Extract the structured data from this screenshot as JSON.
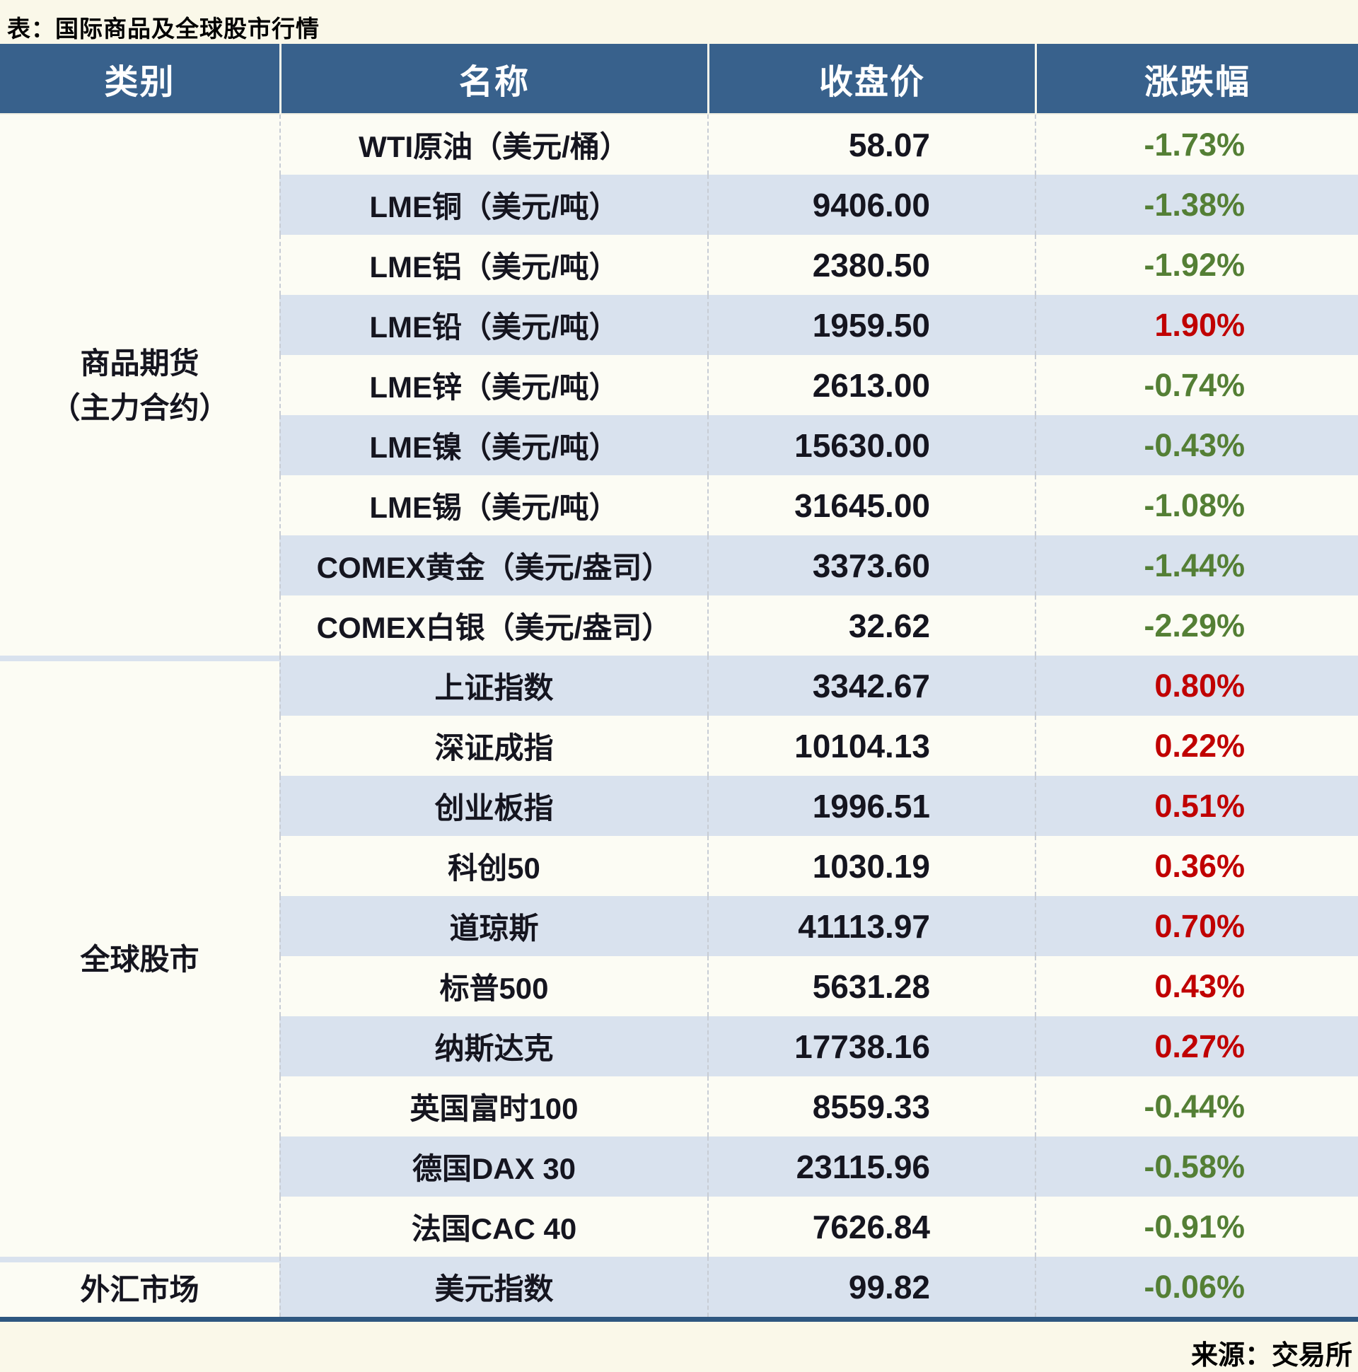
{
  "title": "表：国际商品及全球股市行情",
  "source": "来源：交易所",
  "colors": {
    "header_bg": "#38618C",
    "header_fg": "#FFFFFF",
    "row_light": "#FCFCF4",
    "row_blue": "#D9E2EE",
    "up_red": "#C00000",
    "down_green": "#547F35",
    "bottom_border": "#2E5780",
    "page_bg": "#FAF8E9"
  },
  "table": {
    "headers": [
      "类别",
      "名称",
      "收盘价",
      "涨跌幅"
    ],
    "groups": [
      {
        "category_lines": [
          "商品期货",
          "（主力合约）"
        ],
        "rows": [
          {
            "name": "WTI原油（美元/桶）",
            "close": "58.07",
            "change": "-1.73%",
            "trend": "down"
          },
          {
            "name": "LME铜（美元/吨）",
            "close": "9406.00",
            "change": "-1.38%",
            "trend": "down"
          },
          {
            "name": "LME铝（美元/吨）",
            "close": "2380.50",
            "change": "-1.92%",
            "trend": "down"
          },
          {
            "name": "LME铅（美元/吨）",
            "close": "1959.50",
            "change": "1.90%",
            "trend": "up"
          },
          {
            "name": "LME锌（美元/吨）",
            "close": "2613.00",
            "change": "-0.74%",
            "trend": "down"
          },
          {
            "name": "LME镍（美元/吨）",
            "close": "15630.00",
            "change": "-0.43%",
            "trend": "down"
          },
          {
            "name": "LME锡（美元/吨）",
            "close": "31645.00",
            "change": "-1.08%",
            "trend": "down"
          },
          {
            "name": "COMEX黄金（美元/盎司）",
            "close": "3373.60",
            "change": "-1.44%",
            "trend": "down"
          },
          {
            "name": "COMEX白银（美元/盎司）",
            "close": "32.62",
            "change": "-2.29%",
            "trend": "down"
          }
        ]
      },
      {
        "category_lines": [
          "全球股市"
        ],
        "rows": [
          {
            "name": "上证指数",
            "close": "3342.67",
            "change": "0.80%",
            "trend": "up"
          },
          {
            "name": "深证成指",
            "close": "10104.13",
            "change": "0.22%",
            "trend": "up"
          },
          {
            "name": "创业板指",
            "close": "1996.51",
            "change": "0.51%",
            "trend": "up"
          },
          {
            "name": "科创50",
            "close": "1030.19",
            "change": "0.36%",
            "trend": "up"
          },
          {
            "name": "道琼斯",
            "close": "41113.97",
            "change": "0.70%",
            "trend": "up"
          },
          {
            "name": "标普500",
            "close": "5631.28",
            "change": "0.43%",
            "trend": "up"
          },
          {
            "name": "纳斯达克",
            "close": "17738.16",
            "change": "0.27%",
            "trend": "up"
          },
          {
            "name": "英国富时100",
            "close": "8559.33",
            "change": "-0.44%",
            "trend": "down"
          },
          {
            "name": "德国DAX 30",
            "close": "23115.96",
            "change": "-0.58%",
            "trend": "down"
          },
          {
            "name": "法国CAC 40",
            "close": "7626.84",
            "change": "-0.91%",
            "trend": "down"
          }
        ]
      },
      {
        "category_lines": [
          "外汇市场"
        ],
        "rows": [
          {
            "name": "美元指数",
            "close": "99.82",
            "change": "-0.06%",
            "trend": "down"
          }
        ]
      }
    ]
  },
  "chart_data": {
    "type": "table",
    "title": "表：国际商品及全球股市行情",
    "columns": [
      "类别",
      "名称",
      "收盘价",
      "涨跌幅"
    ],
    "rows": [
      [
        "商品期货（主力合约）",
        "WTI原油（美元/桶）",
        58.07,
        "-1.73%"
      ],
      [
        "商品期货（主力合约）",
        "LME铜（美元/吨）",
        9406.0,
        "-1.38%"
      ],
      [
        "商品期货（主力合约）",
        "LME铝（美元/吨）",
        2380.5,
        "-1.92%"
      ],
      [
        "商品期货（主力合约）",
        "LME铅（美元/吨）",
        1959.5,
        "1.90%"
      ],
      [
        "商品期货（主力合约）",
        "LME锌（美元/吨）",
        2613.0,
        "-0.74%"
      ],
      [
        "商品期货（主力合约）",
        "LME镍（美元/吨）",
        15630.0,
        "-0.43%"
      ],
      [
        "商品期货（主力合约）",
        "LME锡（美元/吨）",
        31645.0,
        "-1.08%"
      ],
      [
        "商品期货（主力合约）",
        "COMEX黄金（美元/盎司）",
        3373.6,
        "-1.44%"
      ],
      [
        "商品期货（主力合约）",
        "COMEX白银（美元/盎司）",
        32.62,
        "-2.29%"
      ],
      [
        "全球股市",
        "上证指数",
        3342.67,
        "0.80%"
      ],
      [
        "全球股市",
        "深证成指",
        10104.13,
        "0.22%"
      ],
      [
        "全球股市",
        "创业板指",
        1996.51,
        "0.51%"
      ],
      [
        "全球股市",
        "科创50",
        1030.19,
        "0.36%"
      ],
      [
        "全球股市",
        "道琼斯",
        41113.97,
        "0.70%"
      ],
      [
        "全球股市",
        "标普500",
        5631.28,
        "0.43%"
      ],
      [
        "全球股市",
        "纳斯达克",
        17738.16,
        "0.27%"
      ],
      [
        "全球股市",
        "英国富时100",
        8559.33,
        "-0.44%"
      ],
      [
        "全球股市",
        "德国DAX 30",
        23115.96,
        "-0.58%"
      ],
      [
        "全球股市",
        "法国CAC 40",
        7626.84,
        "-0.91%"
      ],
      [
        "外汇市场",
        "美元指数",
        99.82,
        "-0.06%"
      ]
    ],
    "legend": "red = up, green = down (Chinese market convention)"
  }
}
